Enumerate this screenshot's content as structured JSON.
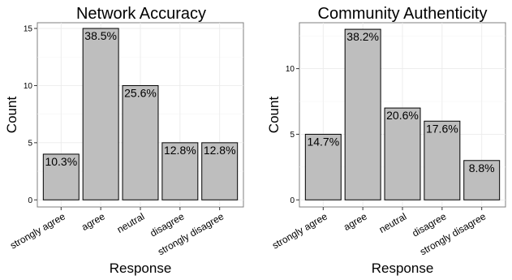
{
  "chart_data": [
    {
      "type": "bar",
      "title": "Network Accuracy",
      "xlabel": "Response",
      "ylabel": "Count",
      "categories": [
        "strongly agree",
        "agree",
        "neutral",
        "disagree",
        "strongly disagree"
      ],
      "values": [
        4,
        15,
        10,
        5,
        5
      ],
      "data_labels": [
        "10.3%",
        "38.5%",
        "25.6%",
        "12.8%",
        "12.8%"
      ],
      "ylim": [
        0,
        15.5
      ],
      "yticks": [
        0,
        5,
        10,
        15
      ],
      "grid": true,
      "bar_color": "#bebebe"
    },
    {
      "type": "bar",
      "title": "Community Authenticity",
      "xlabel": "Response",
      "ylabel": "Count",
      "categories": [
        "strongly agree",
        "agree",
        "neutral",
        "disagree",
        "strongly disagree"
      ],
      "values": [
        5,
        13,
        7,
        6,
        3
      ],
      "data_labels": [
        "14.7%",
        "38.2%",
        "20.6%",
        "17.6%",
        "8.8%"
      ],
      "ylim": [
        0,
        13.5
      ],
      "yticks": [
        0,
        5,
        10
      ],
      "grid": true,
      "bar_color": "#bebebe"
    }
  ]
}
